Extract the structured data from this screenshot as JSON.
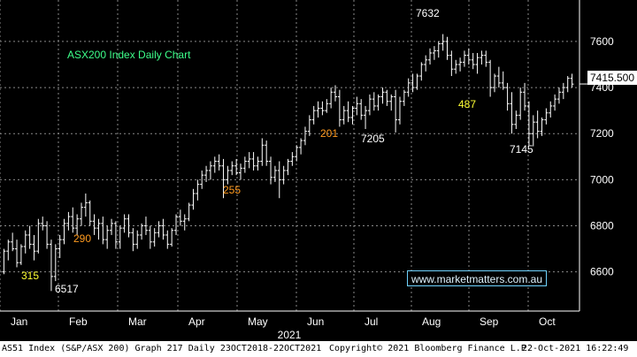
{
  "chart_data": {
    "type": "bar",
    "title": "ASX200 Index Daily Chart",
    "last_price": "7415.500",
    "y_ticks": [
      "6600",
      "6800",
      "7000",
      "7200",
      "7400",
      "7600"
    ],
    "x_ticks": [
      "Jan",
      "Feb",
      "Mar",
      "Apr",
      "May",
      "Jun",
      "Jul",
      "Aug",
      "Sep",
      "Oct"
    ],
    "year_label": "2021",
    "ylim": [
      6430,
      7780
    ],
    "grid": true,
    "annotations": [
      {
        "label": "315",
        "x": "Jan 2021",
        "y": 6560,
        "color": "#ffff33"
      },
      {
        "label": "6517",
        "x": "Jan 2021",
        "y": 6517,
        "color": "#ffffff"
      },
      {
        "label": "290",
        "x": "Feb 2021",
        "y": 6690,
        "color": "#ff9a1f"
      },
      {
        "label": "255",
        "x": "May 2021",
        "y": 6910,
        "color": "#ff9a1f"
      },
      {
        "label": "201",
        "x": "Jun 2021",
        "y": 7210,
        "color": "#ff9a1f"
      },
      {
        "label": "7205",
        "x": "Jul 2021",
        "y": 7205,
        "color": "#ffffff"
      },
      {
        "label": "7632",
        "x": "Aug 2021",
        "y": 7632,
        "color": "#ffffff"
      },
      {
        "label": "487",
        "x": "Aug 2021",
        "y": 7300,
        "color": "#ffff33"
      },
      {
        "label": "7145",
        "x": "Sep 2021",
        "y": 7145,
        "color": "#ffffff"
      }
    ],
    "bars": [
      [
        6600,
        6700,
        6590,
        6690
      ],
      [
        6690,
        6740,
        6650,
        6730
      ],
      [
        6730,
        6770,
        6690,
        6700
      ],
      [
        6700,
        6740,
        6620,
        6640
      ],
      [
        6640,
        6720,
        6630,
        6710
      ],
      [
        6710,
        6780,
        6680,
        6760
      ],
      [
        6760,
        6800,
        6700,
        6720
      ],
      [
        6720,
        6760,
        6650,
        6690
      ],
      [
        6690,
        6830,
        6680,
        6810
      ],
      [
        6810,
        6840,
        6780,
        6800
      ],
      [
        6800,
        6820,
        6700,
        6720
      ],
      [
        6720,
        6740,
        6517,
        6580
      ],
      [
        6580,
        6720,
        6560,
        6700
      ],
      [
        6700,
        6760,
        6660,
        6740
      ],
      [
        6740,
        6830,
        6720,
        6810
      ],
      [
        6810,
        6860,
        6780,
        6840
      ],
      [
        6840,
        6880,
        6770,
        6790
      ],
      [
        6790,
        6850,
        6760,
        6830
      ],
      [
        6830,
        6900,
        6800,
        6880
      ],
      [
        6880,
        6940,
        6840,
        6900
      ],
      [
        6900,
        6910,
        6800,
        6820
      ],
      [
        6820,
        6850,
        6760,
        6790
      ],
      [
        6790,
        6830,
        6740,
        6810
      ],
      [
        6810,
        6840,
        6720,
        6740
      ],
      [
        6740,
        6800,
        6700,
        6780
      ],
      [
        6780,
        6830,
        6760,
        6810
      ],
      [
        6810,
        6820,
        6700,
        6730
      ],
      [
        6730,
        6800,
        6700,
        6790
      ],
      [
        6790,
        6850,
        6770,
        6830
      ],
      [
        6830,
        6850,
        6750,
        6770
      ],
      [
        6770,
        6790,
        6690,
        6720
      ],
      [
        6720,
        6780,
        6700,
        6760
      ],
      [
        6760,
        6810,
        6740,
        6800
      ],
      [
        6800,
        6840,
        6760,
        6780
      ],
      [
        6780,
        6800,
        6700,
        6730
      ],
      [
        6730,
        6790,
        6710,
        6770
      ],
      [
        6770,
        6820,
        6750,
        6800
      ],
      [
        6800,
        6830,
        6740,
        6760
      ],
      [
        6760,
        6780,
        6700,
        6720
      ],
      [
        6720,
        6790,
        6710,
        6780
      ],
      [
        6780,
        6850,
        6760,
        6840
      ],
      [
        6840,
        6870,
        6800,
        6820
      ],
      [
        6820,
        6850,
        6780,
        6830
      ],
      [
        6830,
        6900,
        6820,
        6890
      ],
      [
        6890,
        6960,
        6870,
        6940
      ],
      [
        6940,
        7000,
        6910,
        6980
      ],
      [
        6980,
        7040,
        6960,
        7020
      ],
      [
        7020,
        7060,
        6990,
        7040
      ],
      [
        7040,
        7080,
        7000,
        7060
      ],
      [
        7060,
        7100,
        7030,
        7080
      ],
      [
        7080,
        7110,
        7040,
        7060
      ],
      [
        7060,
        7090,
        6920,
        7000
      ],
      [
        7000,
        7060,
        6980,
        7040
      ],
      [
        7040,
        7080,
        7020,
        7060
      ],
      [
        7060,
        7090,
        7020,
        7030
      ],
      [
        7030,
        7070,
        7000,
        7050
      ],
      [
        7050,
        7100,
        7030,
        7080
      ],
      [
        7080,
        7120,
        7050,
        7090
      ],
      [
        7090,
        7120,
        7040,
        7060
      ],
      [
        7060,
        7100,
        7040,
        7080
      ],
      [
        7080,
        7180,
        7060,
        7150
      ],
      [
        7150,
        7170,
        7060,
        7080
      ],
      [
        7080,
        7100,
        6980,
        7010
      ],
      [
        7010,
        7060,
        6990,
        7040
      ],
      [
        7040,
        7080,
        6920,
        7000
      ],
      [
        7000,
        7060,
        6980,
        7040
      ],
      [
        7040,
        7090,
        7020,
        7080
      ],
      [
        7080,
        7120,
        7060,
        7100
      ],
      [
        7100,
        7150,
        7080,
        7140
      ],
      [
        7140,
        7180,
        7110,
        7170
      ],
      [
        7170,
        7230,
        7150,
        7210
      ],
      [
        7210,
        7280,
        7190,
        7260
      ],
      [
        7260,
        7320,
        7240,
        7300
      ],
      [
        7300,
        7340,
        7270,
        7310
      ],
      [
        7310,
        7340,
        7280,
        7300
      ],
      [
        7300,
        7350,
        7290,
        7330
      ],
      [
        7330,
        7400,
        7310,
        7380
      ],
      [
        7380,
        7410,
        7340,
        7360
      ],
      [
        7360,
        7390,
        7230,
        7260
      ],
      [
        7260,
        7320,
        7240,
        7300
      ],
      [
        7300,
        7340,
        7250,
        7270
      ],
      [
        7270,
        7320,
        7240,
        7310
      ],
      [
        7310,
        7360,
        7280,
        7330
      ],
      [
        7330,
        7350,
        7260,
        7280
      ],
      [
        7280,
        7320,
        7220,
        7300
      ],
      [
        7300,
        7370,
        7280,
        7350
      ],
      [
        7350,
        7380,
        7300,
        7320
      ],
      [
        7320,
        7370,
        7300,
        7360
      ],
      [
        7360,
        7400,
        7330,
        7380
      ],
      [
        7380,
        7390,
        7320,
        7340
      ],
      [
        7340,
        7370,
        7300,
        7360
      ],
      [
        7360,
        7390,
        7205,
        7260
      ],
      [
        7260,
        7360,
        7240,
        7340
      ],
      [
        7340,
        7390,
        7320,
        7380
      ],
      [
        7380,
        7440,
        7360,
        7420
      ],
      [
        7420,
        7460,
        7380,
        7400
      ],
      [
        7400,
        7460,
        7390,
        7450
      ],
      [
        7450,
        7510,
        7430,
        7500
      ],
      [
        7500,
        7540,
        7470,
        7520
      ],
      [
        7520,
        7570,
        7500,
        7550
      ],
      [
        7550,
        7580,
        7520,
        7560
      ],
      [
        7560,
        7600,
        7530,
        7590
      ],
      [
        7590,
        7632,
        7560,
        7600
      ],
      [
        7600,
        7620,
        7520,
        7540
      ],
      [
        7540,
        7560,
        7450,
        7480
      ],
      [
        7480,
        7520,
        7460,
        7500
      ],
      [
        7500,
        7530,
        7470,
        7510
      ],
      [
        7510,
        7560,
        7490,
        7540
      ],
      [
        7540,
        7570,
        7500,
        7520
      ],
      [
        7520,
        7550,
        7480,
        7500
      ],
      [
        7500,
        7550,
        7460,
        7530
      ],
      [
        7530,
        7560,
        7500,
        7540
      ],
      [
        7540,
        7560,
        7490,
        7510
      ],
      [
        7510,
        7520,
        7360,
        7400
      ],
      [
        7400,
        7460,
        7380,
        7450
      ],
      [
        7450,
        7490,
        7400,
        7420
      ],
      [
        7420,
        7470,
        7390,
        7400
      ],
      [
        7400,
        7420,
        7300,
        7330
      ],
      [
        7330,
        7380,
        7200,
        7240
      ],
      [
        7240,
        7300,
        7220,
        7280
      ],
      [
        7280,
        7400,
        7260,
        7380
      ],
      [
        7380,
        7420,
        7300,
        7320
      ],
      [
        7320,
        7340,
        7150,
        7200
      ],
      [
        7200,
        7280,
        7145,
        7250
      ],
      [
        7250,
        7300,
        7180,
        7210
      ],
      [
        7210,
        7270,
        7190,
        7260
      ],
      [
        7260,
        7310,
        7240,
        7290
      ],
      [
        7290,
        7340,
        7270,
        7320
      ],
      [
        7320,
        7370,
        7300,
        7350
      ],
      [
        7350,
        7400,
        7330,
        7380
      ],
      [
        7380,
        7420,
        7350,
        7400
      ],
      [
        7400,
        7450,
        7380,
        7440
      ],
      [
        7440,
        7460,
        7400,
        7415
      ]
    ]
  },
  "footer": {
    "left": "AS51 Index (S&P/ASX 200) Graph 217  Daily 23OCT2018-22OCT2021",
    "middle": "Copyright© 2021 Bloomberg Finance L.P.",
    "right": "22-Oct-2021 16:22:49"
  },
  "watermark": "www.marketmatters.com.au",
  "colors": {
    "background": "#000000",
    "grid": "#8a8a8a",
    "bars": "#ffffff",
    "title": "#3dff8a",
    "watermark_border": "#6fd3ff"
  }
}
